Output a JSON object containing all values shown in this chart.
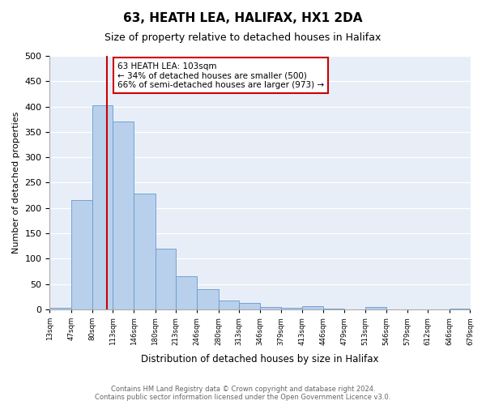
{
  "title": "63, HEATH LEA, HALIFAX, HX1 2DA",
  "subtitle": "Size of property relative to detached houses in Halifax",
  "xlabel": "Distribution of detached houses by size in Halifax",
  "ylabel": "Number of detached properties",
  "bar_values": [
    3,
    215,
    403,
    370,
    228,
    120,
    65,
    40,
    17,
    12,
    5,
    3,
    7,
    2,
    0,
    5,
    0,
    0,
    0,
    1
  ],
  "bin_edges": [
    13,
    47,
    80,
    113,
    146,
    180,
    213,
    246,
    280,
    313,
    346,
    379,
    413,
    446,
    479,
    513,
    546,
    579,
    612,
    646,
    679
  ],
  "bin_labels": [
    "13sqm",
    "47sqm",
    "80sqm",
    "113sqm",
    "146sqm",
    "180sqm",
    "213sqm",
    "246sqm",
    "280sqm",
    "313sqm",
    "346sqm",
    "379sqm",
    "413sqm",
    "446sqm",
    "479sqm",
    "513sqm",
    "546sqm",
    "579sqm",
    "612sqm",
    "646sqm",
    "679sqm"
  ],
  "bar_color": "#b8d0ec",
  "bar_edge_color": "#6699cc",
  "vline_x": 103,
  "vline_color": "#cc0000",
  "annotation_title": "63 HEATH LEA: 103sqm",
  "annotation_line1": "← 34% of detached houses are smaller (500)",
  "annotation_line2": "66% of semi-detached houses are larger (973) →",
  "annotation_box_color": "#cc0000",
  "ylim": [
    0,
    500
  ],
  "yticks": [
    0,
    50,
    100,
    150,
    200,
    250,
    300,
    350,
    400,
    450,
    500
  ],
  "footer_line1": "Contains HM Land Registry data © Crown copyright and database right 2024.",
  "footer_line2": "Contains public sector information licensed under the Open Government Licence v3.0.",
  "fig_bg_color": "#ffffff",
  "plot_bg_color": "#e8eef8"
}
